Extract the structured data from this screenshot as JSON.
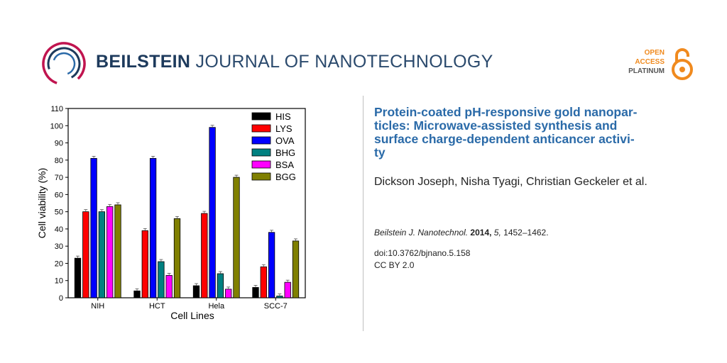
{
  "header": {
    "journal_bold": "BEILSTEIN",
    "journal_light": "JOURNAL OF NANOTECHNOLOGY",
    "open_access": [
      "OPEN",
      "ACCESS",
      "PLATINUM"
    ],
    "colors": {
      "brand": "#1d3a5c",
      "accent": "#c0144f",
      "oa": "#f08a1e"
    }
  },
  "article": {
    "title": "Protein-coated pH-responsive gold nanopar-ticles: Microwave-assisted synthesis and surface charge-dependent anticancer activi-ty",
    "title_lines": [
      "Protein-coated pH-responsive gold nanopar-",
      "ticles: Microwave-assisted synthesis and",
      "surface charge-dependent anticancer activi-",
      "ty"
    ],
    "authors": "Dickson Joseph, Nisha Tyagi, Christian Geckeler et al.",
    "citation": {
      "journal": "Beilstein J. Nanotechnol.",
      "year": "2014,",
      "volume": "5,",
      "pages": "1452–1462."
    },
    "doi": "doi:10.3762/bjnano.5.158",
    "license": "CC BY 2.0"
  },
  "chart_data": {
    "type": "bar",
    "xlabel": "Cell Lines",
    "ylabel": "Cell viability (%)",
    "ylim": [
      0,
      110
    ],
    "yticks": [
      0,
      10,
      20,
      30,
      40,
      50,
      60,
      70,
      80,
      90,
      100,
      110
    ],
    "categories": [
      "NIH",
      "HCT",
      "Hela",
      "SCC-7"
    ],
    "legend_position": "top-right",
    "series": [
      {
        "name": "HIS",
        "color": "#000000",
        "values": [
          23,
          4,
          7,
          6
        ]
      },
      {
        "name": "LYS",
        "color": "#ff0000",
        "values": [
          50,
          39,
          49,
          18
        ]
      },
      {
        "name": "OVA",
        "color": "#0000ff",
        "values": [
          81,
          81,
          99,
          38
        ]
      },
      {
        "name": "BHG",
        "color": "#008080",
        "values": [
          50,
          21,
          14,
          1
        ]
      },
      {
        "name": "BSA",
        "color": "#ff00ff",
        "values": [
          53,
          13,
          5,
          9
        ]
      },
      {
        "name": "BGG",
        "color": "#808000",
        "values": [
          54,
          46,
          70,
          33
        ]
      }
    ]
  }
}
